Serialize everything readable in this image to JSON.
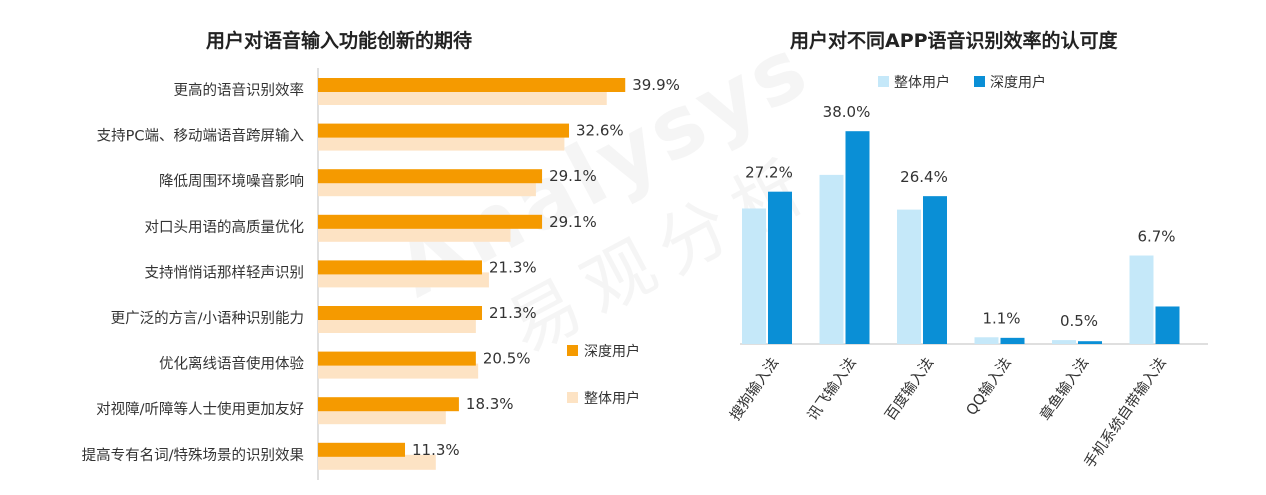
{
  "colors": {
    "deep_left": "#f59a00",
    "overall_left": "#fde3c4",
    "deep_right": "#0a8fd6",
    "overall_right": "#c5e8f9",
    "axis": "#bfbfbf"
  },
  "watermark": {
    "en": "Analysys",
    "cn": "易观分析"
  },
  "chart_data": [
    {
      "type": "bar",
      "orientation": "horizontal",
      "title": "用户对语音输入功能创新的期待",
      "categories": [
        "更高的语音识别效率",
        "支持PC端、移动端语音跨屏输入",
        "降低周围环境噪音影响",
        "对口头用语的高质量优化",
        "支持悄悄话那样轻声识别",
        "更广泛的方言/小语种识别能力",
        "优化离线语音使用体验",
        "对视障/听障等人士使用更加友好",
        "提高专有名词/特殊场景的识别效果"
      ],
      "series": [
        {
          "name": "深度用户",
          "values": [
            39.9,
            32.6,
            29.1,
            29.1,
            21.3,
            21.3,
            20.5,
            18.3,
            11.3
          ],
          "labels": [
            "39.9%",
            "32.6%",
            "29.1%",
            "29.1%",
            "21.3%",
            "21.3%",
            "20.5%",
            "18.3%",
            "11.3%"
          ]
        },
        {
          "name": "整体用户",
          "values": [
            37.5,
            32.0,
            28.3,
            25.0,
            22.2,
            20.5,
            20.8,
            16.6,
            15.3
          ]
        }
      ],
      "xlim": [
        0,
        45
      ],
      "legend": "right"
    },
    {
      "type": "bar",
      "orientation": "vertical",
      "title": "用户对不同APP语音识别效率的认可度",
      "categories": [
        "搜狗输入法",
        "讯飞输入法",
        "百度输入法",
        "QQ输入法",
        "章鱼输入法",
        "手机系统自带输入法"
      ],
      "series": [
        {
          "name": "整体用户",
          "values": [
            24.2,
            30.2,
            24.0,
            1.2,
            0.7,
            15.8
          ]
        },
        {
          "name": "深度用户",
          "values": [
            27.2,
            38.0,
            26.4,
            1.1,
            0.5,
            6.7
          ],
          "labels": [
            "27.2%",
            "38.0%",
            "26.4%",
            "1.1%",
            "0.5%",
            "6.7%"
          ]
        }
      ],
      "ylim": [
        0,
        42
      ],
      "legend": "top"
    }
  ]
}
